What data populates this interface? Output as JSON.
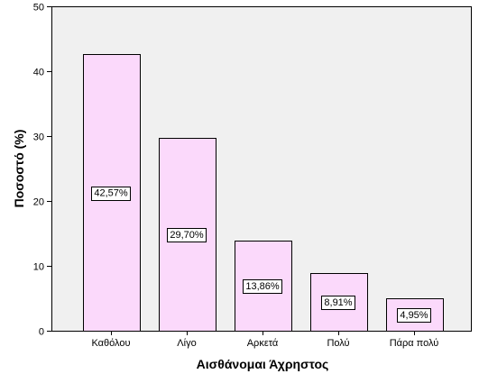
{
  "chart_data": {
    "type": "bar",
    "categories": [
      "Καθόλου",
      "Λίγο",
      "Αρκετά",
      "Πολύ",
      "Πάρα πολύ"
    ],
    "values": [
      42.57,
      29.7,
      13.86,
      8.91,
      4.95
    ],
    "data_labels": [
      "42,57%",
      "29,70%",
      "13,86%",
      "8,91%",
      "4,95%"
    ],
    "xlabel": "Αισθάνομαι Άχρηστος",
    "ylabel": "Ποσοστό (%)",
    "ylim": [
      0,
      50
    ],
    "yticks": [
      0,
      10,
      20,
      30,
      40,
      50
    ],
    "grid": false,
    "legend": "none",
    "colors": {
      "bar_fill": "#fbd9fb",
      "plot_background": "#f0f0f0",
      "axis": "#000000"
    }
  }
}
